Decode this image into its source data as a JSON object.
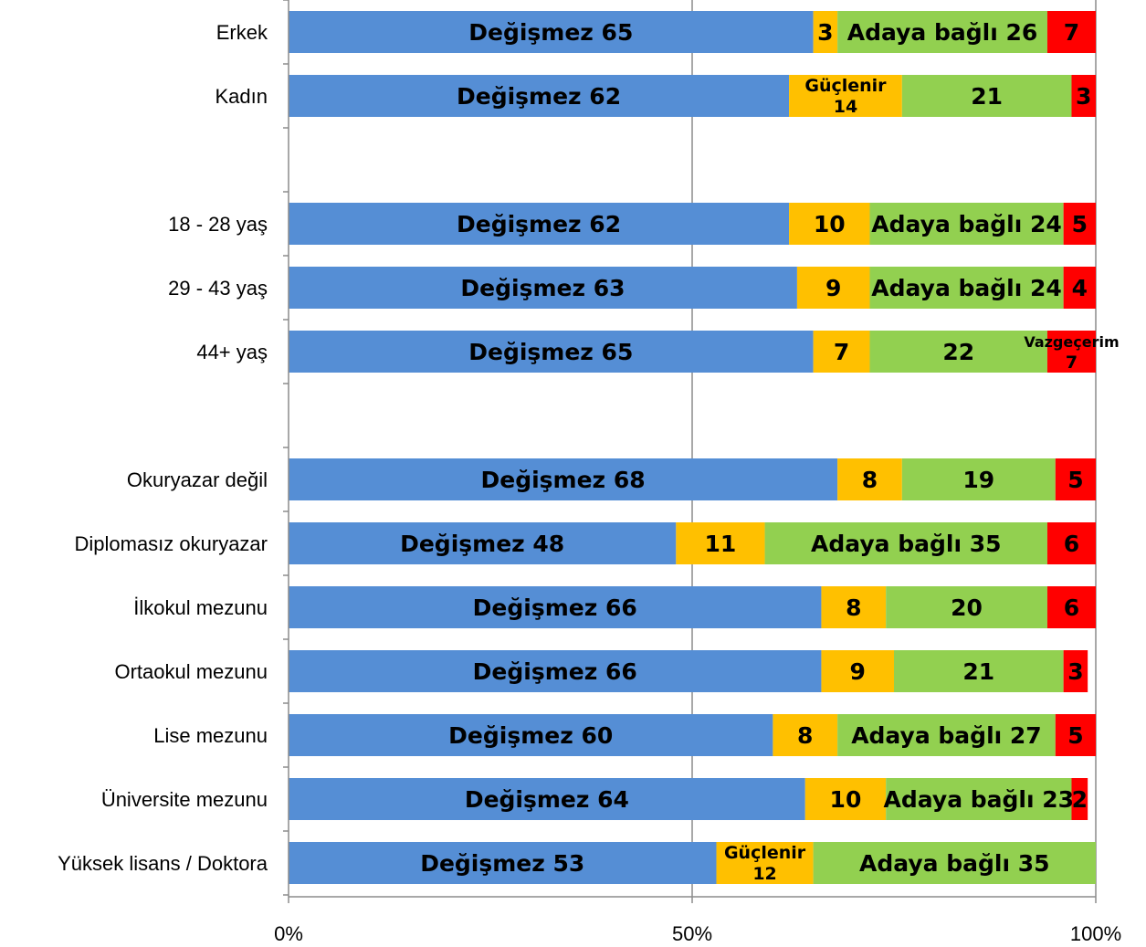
{
  "chart_data": {
    "type": "bar",
    "orientation": "horizontal",
    "stacked": "percent",
    "xlim": [
      0,
      100
    ],
    "x_ticks": [
      "0%",
      "50%",
      "100%"
    ],
    "grid": "vertical at 50%",
    "colors": {
      "degismez": "#558ED5",
      "guclenir": "#FFC000",
      "adaya_bagli": "#92D050",
      "vazgecerim": "#FF0000"
    },
    "rows": [
      {
        "category": "Erkek",
        "gap_before": false,
        "segments": [
          {
            "key": "degismez",
            "value": 65,
            "label": [
              "Değişmez 65"
            ]
          },
          {
            "key": "guclenir",
            "value": 3,
            "label": [
              "3"
            ]
          },
          {
            "key": "adaya_bagli",
            "value": 26,
            "label": [
              "Adaya bağlı 26"
            ]
          },
          {
            "key": "vazgecerim",
            "value": 7,
            "label": [
              "7"
            ]
          }
        ]
      },
      {
        "category": "Kadın",
        "gap_before": false,
        "segments": [
          {
            "key": "degismez",
            "value": 62,
            "label": [
              "Değişmez 62"
            ]
          },
          {
            "key": "guclenir",
            "value": 14,
            "label": [
              "Güçlenir",
              "14"
            ]
          },
          {
            "key": "adaya_bagli",
            "value": 21,
            "label": [
              "21"
            ]
          },
          {
            "key": "vazgecerim",
            "value": 3,
            "label": [
              "3"
            ]
          }
        ]
      },
      {
        "category": "18 - 28 yaş",
        "gap_before": true,
        "segments": [
          {
            "key": "degismez",
            "value": 62,
            "label": [
              "Değişmez 62"
            ]
          },
          {
            "key": "guclenir",
            "value": 10,
            "label": [
              "10"
            ]
          },
          {
            "key": "adaya_bagli",
            "value": 24,
            "label": [
              "Adaya bağlı 24"
            ]
          },
          {
            "key": "vazgecerim",
            "value": 5,
            "label": [
              "5"
            ]
          }
        ]
      },
      {
        "category": "29 - 43 yaş",
        "gap_before": false,
        "segments": [
          {
            "key": "degismez",
            "value": 63,
            "label": [
              "Değişmez 63"
            ]
          },
          {
            "key": "guclenir",
            "value": 9,
            "label": [
              "9"
            ]
          },
          {
            "key": "adaya_bagli",
            "value": 24,
            "label": [
              "Adaya bağlı 24"
            ]
          },
          {
            "key": "vazgecerim",
            "value": 4,
            "label": [
              "4"
            ]
          }
        ]
      },
      {
        "category": "44+ yaş",
        "gap_before": false,
        "segments": [
          {
            "key": "degismez",
            "value": 65,
            "label": [
              "Değişmez 65"
            ]
          },
          {
            "key": "guclenir",
            "value": 7,
            "label": [
              "7"
            ]
          },
          {
            "key": "adaya_bagli",
            "value": 22,
            "label": [
              "22"
            ]
          },
          {
            "key": "vazgecerim",
            "value": 7,
            "label": [
              "Vazgeçerim",
              "7"
            ]
          }
        ]
      },
      {
        "category": "Okuryazar değil",
        "gap_before": true,
        "segments": [
          {
            "key": "degismez",
            "value": 68,
            "label": [
              "Değişmez 68"
            ]
          },
          {
            "key": "guclenir",
            "value": 8,
            "label": [
              "8"
            ]
          },
          {
            "key": "adaya_bagli",
            "value": 19,
            "label": [
              "19"
            ]
          },
          {
            "key": "vazgecerim",
            "value": 5,
            "label": [
              "5"
            ]
          }
        ]
      },
      {
        "category": "Diplomasız okuryazar",
        "gap_before": false,
        "segments": [
          {
            "key": "degismez",
            "value": 48,
            "label": [
              "Değişmez 48"
            ]
          },
          {
            "key": "guclenir",
            "value": 11,
            "label": [
              "11"
            ]
          },
          {
            "key": "adaya_bagli",
            "value": 35,
            "label": [
              "Adaya bağlı 35"
            ]
          },
          {
            "key": "vazgecerim",
            "value": 6,
            "label": [
              "6"
            ]
          }
        ]
      },
      {
        "category": "İlkokul mezunu",
        "gap_before": false,
        "segments": [
          {
            "key": "degismez",
            "value": 66,
            "label": [
              "Değişmez 66"
            ]
          },
          {
            "key": "guclenir",
            "value": 8,
            "label": [
              "8"
            ]
          },
          {
            "key": "adaya_bagli",
            "value": 20,
            "label": [
              "20"
            ]
          },
          {
            "key": "vazgecerim",
            "value": 6,
            "label": [
              "6"
            ]
          }
        ]
      },
      {
        "category": "Ortaokul mezunu",
        "gap_before": false,
        "segments": [
          {
            "key": "degismez",
            "value": 66,
            "label": [
              "Değişmez 66"
            ]
          },
          {
            "key": "guclenir",
            "value": 9,
            "label": [
              "9"
            ]
          },
          {
            "key": "adaya_bagli",
            "value": 21,
            "label": [
              "21"
            ]
          },
          {
            "key": "vazgecerim",
            "value": 3,
            "label": [
              "3"
            ]
          }
        ]
      },
      {
        "category": "Lise mezunu",
        "gap_before": false,
        "segments": [
          {
            "key": "degismez",
            "value": 60,
            "label": [
              "Değişmez 60"
            ]
          },
          {
            "key": "guclenir",
            "value": 8,
            "label": [
              "8"
            ]
          },
          {
            "key": "adaya_bagli",
            "value": 27,
            "label": [
              "Adaya bağlı 27"
            ]
          },
          {
            "key": "vazgecerim",
            "value": 5,
            "label": [
              "5"
            ]
          }
        ]
      },
      {
        "category": "Üniversite mezunu",
        "gap_before": false,
        "segments": [
          {
            "key": "degismez",
            "value": 64,
            "label": [
              "Değişmez 64"
            ]
          },
          {
            "key": "guclenir",
            "value": 10,
            "label": [
              "10"
            ]
          },
          {
            "key": "adaya_bagli",
            "value": 23,
            "label": [
              "Adaya bağlı 23"
            ]
          },
          {
            "key": "vazgecerim",
            "value": 2,
            "label": [
              "2"
            ]
          }
        ]
      },
      {
        "category": "Yüksek lisans / Doktora",
        "gap_before": false,
        "segments": [
          {
            "key": "degismez",
            "value": 53,
            "label": [
              "Değişmez 53"
            ]
          },
          {
            "key": "guclenir",
            "value": 12,
            "label": [
              "Güçlenir",
              "12"
            ]
          },
          {
            "key": "adaya_bagli",
            "value": 35,
            "label": [
              "Adaya bağlı 35"
            ]
          }
        ]
      }
    ]
  }
}
